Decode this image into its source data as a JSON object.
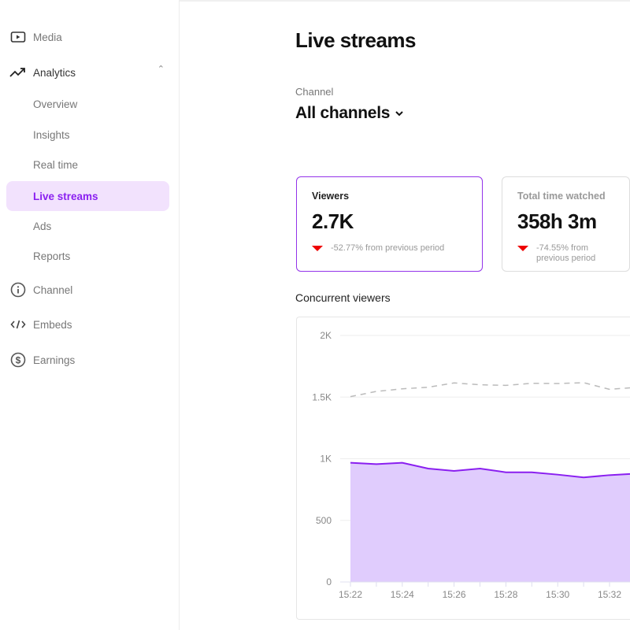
{
  "sidebar": {
    "items": [
      {
        "label": "Media",
        "icon": "play-icon"
      },
      {
        "label": "Analytics",
        "icon": "trending-up-icon",
        "expanded": true
      },
      {
        "label": "Overview"
      },
      {
        "label": "Insights"
      },
      {
        "label": "Real time"
      },
      {
        "label": "Live streams",
        "active": true
      },
      {
        "label": "Ads"
      },
      {
        "label": "Reports"
      },
      {
        "label": "Channel",
        "icon": "info-icon"
      },
      {
        "label": "Embeds",
        "icon": "code-icon"
      },
      {
        "label": "Earnings",
        "icon": "dollar-circle-icon"
      }
    ]
  },
  "header": {
    "title": "Live streams",
    "channel_label": "Channel",
    "channel_value": "All channels"
  },
  "cards": [
    {
      "title": "Viewers",
      "value": "2.7K",
      "delta": "-52.77% from previous period",
      "selected": true
    },
    {
      "title": "Total time watched",
      "value": "358h 3m",
      "delta": "-74.55% from previous period"
    }
  ],
  "colors": {
    "accent": "#8a1ff0",
    "active_bg": "#f2e2fd",
    "fill": "#e0ccfd",
    "negative": "#e00000"
  },
  "chart_data": {
    "type": "area",
    "title": "Concurrent viewers",
    "x": [
      "15:22",
      "15:23",
      "15:24",
      "15:25",
      "15:26",
      "15:27",
      "15:28",
      "15:29",
      "15:30",
      "15:31",
      "15:32"
    ],
    "xticks": [
      "15:22",
      "15:24",
      "15:26",
      "15:28",
      "15:30",
      "15:32"
    ],
    "yticks": [
      "0",
      "500",
      "1K",
      "1.5K",
      "2K"
    ],
    "ylim": [
      0,
      2000
    ],
    "grid": true,
    "series": [
      {
        "values": [
          967,
          956,
          967,
          920,
          901,
          920,
          890,
          890,
          871,
          848,
          867
        ],
        "style": "solid-area"
      },
      {
        "values": [
          1504,
          1546,
          1567,
          1580,
          1615,
          1600,
          1595,
          1612,
          1610,
          1617,
          1563
        ],
        "style": "dashed"
      }
    ]
  }
}
